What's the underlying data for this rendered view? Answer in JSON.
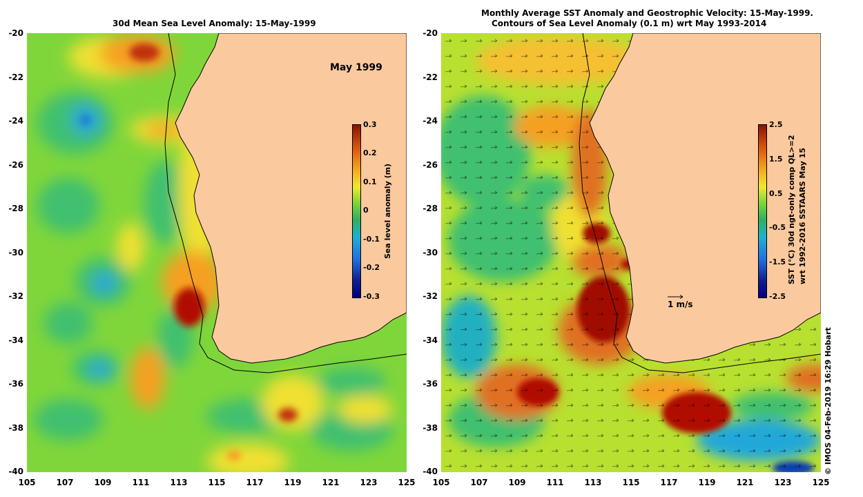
{
  "left_panel": {
    "title": "30d Mean Sea Level Anomaly: 15-May-1999",
    "label": "May 1999",
    "colorbar": {
      "title": "Sea level anomaly (m)",
      "ticks": [
        "0.3",
        "0.2",
        "0.1",
        "0",
        "-0.1",
        "-0.2",
        "-0.3"
      ]
    }
  },
  "right_panel": {
    "title_line1": "Monthly Average SST Anomaly  and Geostrophic Velocity: 15-May-1999.",
    "title_line2": "Contours of Sea Level Anomaly (0.1 m) wrt May 1993-2014",
    "velocity_scale_label": "1 m/s",
    "colorbar": {
      "title_line1": "SST (°C) 30d ngt-only comp QL>=2",
      "title_line2": "wrt 1992-2016 SSTAARS May 15",
      "ticks": [
        "2.5",
        "1.5",
        "0.5",
        "-0.5",
        "-1.5",
        "-2.5"
      ]
    }
  },
  "axes": {
    "y_ticks": [
      "-20",
      "-22",
      "-24",
      "-26",
      "-28",
      "-30",
      "-32",
      "-34",
      "-36",
      "-38",
      "-40"
    ],
    "x_ticks": [
      "105",
      "107",
      "109",
      "111",
      "113",
      "115",
      "117",
      "119",
      "121",
      "123",
      "125"
    ]
  },
  "credit": "© IMOS 04-Feb-2019 16:29 Hobart",
  "colors": {
    "land": "#fbc99e",
    "ocean_base": "#7fd63a",
    "hot": "#b01000",
    "cool": "#2aa7d6"
  }
}
